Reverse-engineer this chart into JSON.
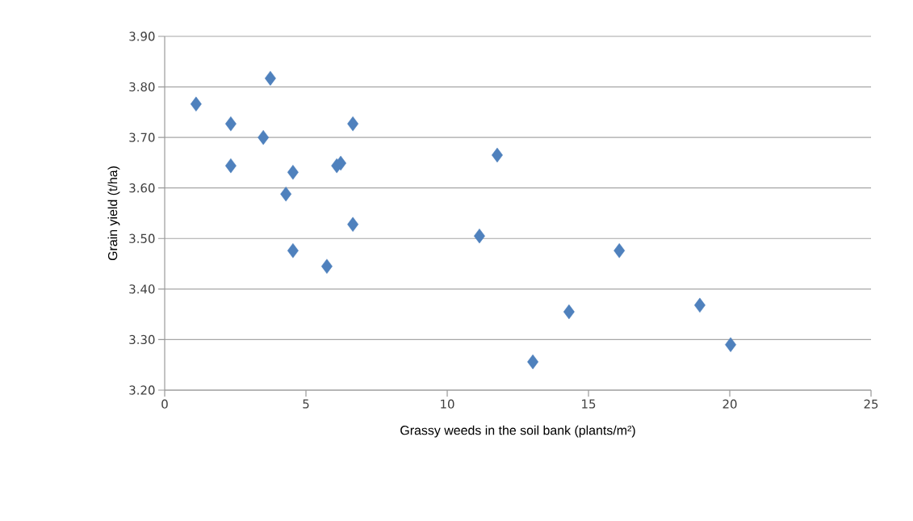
{
  "chart_data": {
    "type": "scatter",
    "xlabel": "Grassy weeds in the soil bank (plants/m²)",
    "ylabel": "Grain yield (t/ha)",
    "x": [
      1.11,
      2.34,
      2.34,
      3.74,
      3.49,
      4.54,
      4.29,
      4.54,
      5.74,
      6.09,
      6.23,
      6.66,
      6.66,
      11.14,
      11.77,
      13.03,
      14.31,
      16.09,
      18.94,
      20.03
    ],
    "values": [
      3.766,
      3.727,
      3.644,
      3.817,
      3.7,
      3.631,
      3.588,
      3.476,
      3.445,
      3.644,
      3.649,
      3.727,
      3.528,
      3.505,
      3.665,
      3.256,
      3.355,
      3.476,
      3.368,
      3.29
    ],
    "color": "#4f81bd",
    "marker": "diamond",
    "grid": "y",
    "xlim": [
      0,
      25
    ],
    "ylim": [
      3.2,
      3.9
    ],
    "xticks": [
      0,
      5,
      10,
      15,
      20,
      25
    ],
    "yticks": [
      {
        "value": 3.2,
        "label": "3.20"
      },
      {
        "value": 3.3,
        "label": "3.30"
      },
      {
        "value": 3.4,
        "label": "3.40"
      },
      {
        "value": 3.5,
        "label": "3.50"
      },
      {
        "value": 3.6,
        "label": "3.60"
      },
      {
        "value": 3.7,
        "label": "3.70"
      },
      {
        "value": 3.8,
        "label": "3.80"
      },
      {
        "value": 3.9,
        "label": "3.90"
      }
    ]
  }
}
